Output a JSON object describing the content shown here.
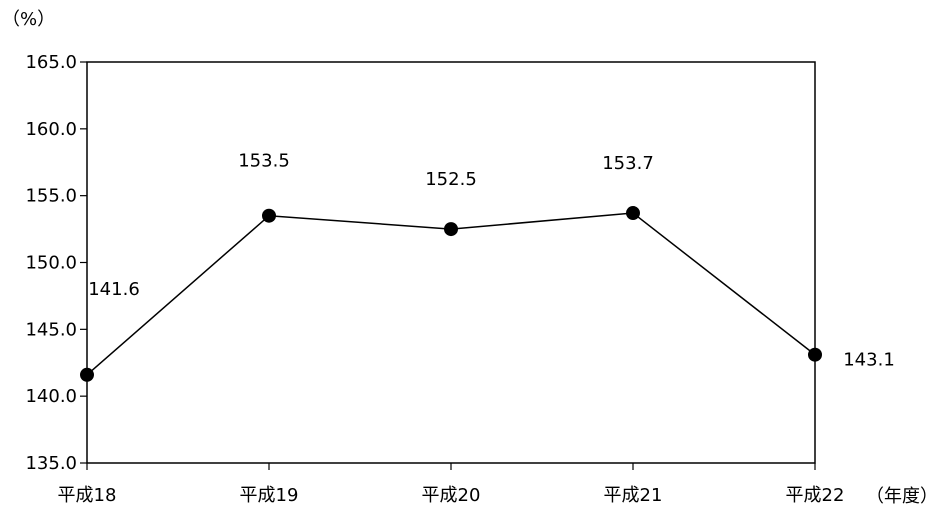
{
  "chart_data": {
    "type": "line",
    "title": "",
    "ylabel": "（%）",
    "xlabel": "（年度）",
    "categories": [
      "平成18",
      "平成19",
      "平成20",
      "平成21",
      "平成22"
    ],
    "series": [
      {
        "values": [
          141.6,
          153.5,
          152.5,
          153.7,
          143.1
        ],
        "labels": [
          "141.6",
          "153.5",
          "152.5",
          "153.7",
          "143.1"
        ]
      }
    ],
    "ylim": [
      135.0,
      165.0
    ],
    "yticks": [
      135.0,
      140.0,
      145.0,
      150.0,
      155.0,
      160.0,
      165.0
    ],
    "ytick_labels": [
      "135.0",
      "140.0",
      "145.0",
      "150.0",
      "155.0",
      "160.0",
      "165.0"
    ],
    "grid": false,
    "legend": "none",
    "colors": {
      "line": "#000000",
      "marker": "#000000",
      "frame": "#000000",
      "background": "#ffffff"
    }
  }
}
